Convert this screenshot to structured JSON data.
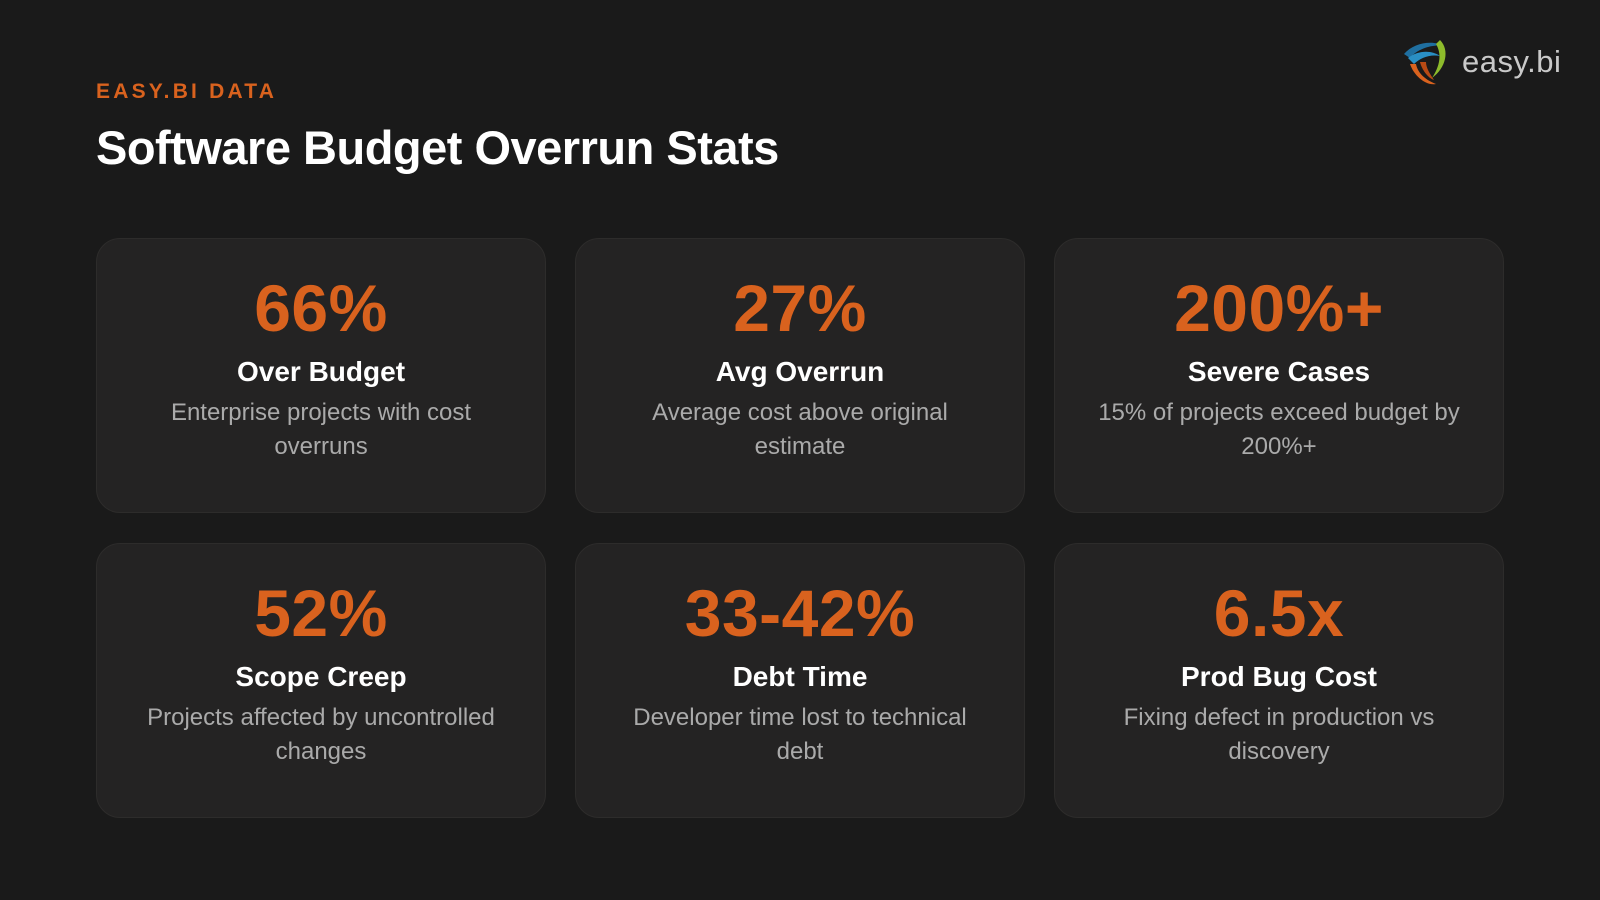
{
  "brand": {
    "logo_icon": "easy-bi-swirl-icon",
    "logo_text": "easy.bi",
    "accent_color": "#d9621e"
  },
  "header": {
    "kicker": "EASY.BI DATA",
    "title": "Software Budget Overrun Stats"
  },
  "stats": [
    {
      "value": "66%",
      "label": "Over Budget",
      "description": "Enterprise projects with cost overruns"
    },
    {
      "value": "27%",
      "label": "Avg Overrun",
      "description": "Average cost above original estimate"
    },
    {
      "value": "200%+",
      "label": "Severe Cases",
      "description": "15% of projects exceed budget by 200%+"
    },
    {
      "value": "52%",
      "label": "Scope Creep",
      "description": "Projects affected by uncontrolled changes"
    },
    {
      "value": "33-42%",
      "label": "Debt Time",
      "description": "Developer time lost to technical debt"
    },
    {
      "value": "6.5x",
      "label": "Prod Bug Cost",
      "description": "Fixing defect in production vs discovery"
    }
  ]
}
